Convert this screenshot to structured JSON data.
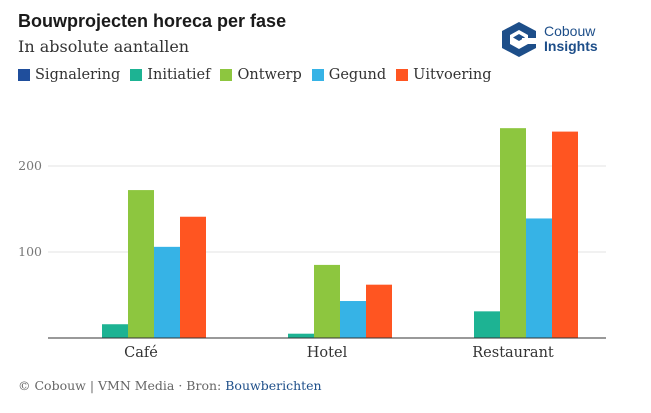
{
  "chart_data": {
    "type": "bar",
    "title": "Bouwprojecten horeca per fase",
    "subtitle": "In absolute aantallen",
    "categories": [
      "Café",
      "Hotel",
      "Restaurant"
    ],
    "series": [
      {
        "name": "Signalering",
        "color": "#1f4e9c",
        "values": [
          0,
          0,
          0
        ]
      },
      {
        "name": "Initiatief",
        "color": "#1db393",
        "values": [
          16,
          5,
          31
        ]
      },
      {
        "name": "Ontwerp",
        "color": "#8dc63f",
        "values": [
          172,
          85,
          244
        ]
      },
      {
        "name": "Gegund",
        "color": "#36b3e6",
        "values": [
          106,
          43,
          139
        ]
      },
      {
        "name": "Uitvoering",
        "color": "#ff5521",
        "values": [
          141,
          62,
          240
        ]
      }
    ],
    "yticks": [
      100,
      200
    ],
    "ylim": [
      0,
      250
    ],
    "grid": true,
    "legend_position": "top-left"
  },
  "brand": {
    "line1": "Cobouw",
    "line2": "Insights",
    "color": "#1d4e89"
  },
  "footer": {
    "credit": "© Cobouw | VMN Media · Bron: ",
    "source_link": "Bouwberichten"
  }
}
